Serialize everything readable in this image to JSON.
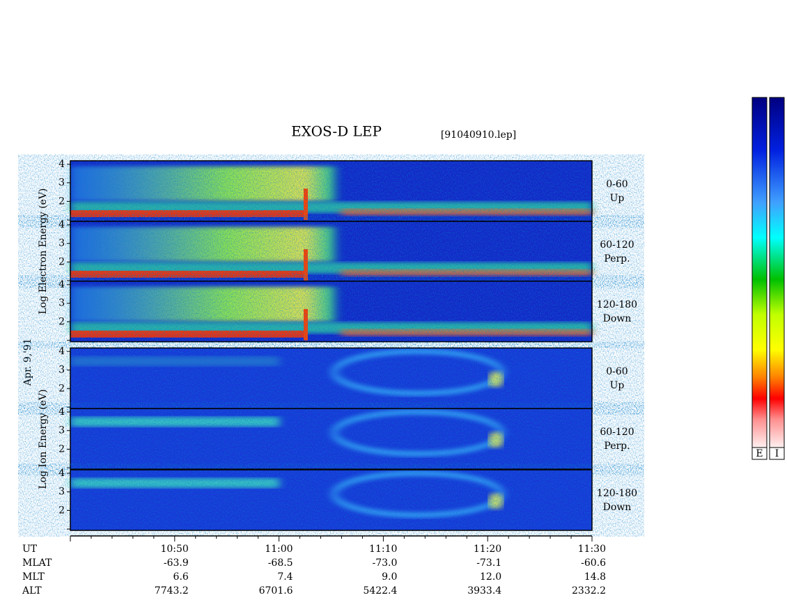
{
  "title": "EXOS-D LEP",
  "file": "[91040910.lep]",
  "date_label": "Apr. 9,'91",
  "groups": [
    {
      "ylabel": "Log  Electron  Energy  (eV)",
      "panels": [
        {
          "range": "0-60",
          "dir": "Up"
        },
        {
          "range": "60-120",
          "dir": "Perp."
        },
        {
          "range": "120-180",
          "dir": "Down"
        }
      ]
    },
    {
      "ylabel": "Log  Ion  Energy  (eV)",
      "panels": [
        {
          "range": "0-60",
          "dir": "Up"
        },
        {
          "range": "60-120",
          "dir": "Perp."
        },
        {
          "range": "120-180",
          "dir": "Down"
        }
      ]
    }
  ],
  "yticks": [
    "2",
    "3",
    "4"
  ],
  "axis_rows": [
    {
      "name": "UT",
      "values": [
        "10:50",
        "11:00",
        "11:10",
        "11:20",
        "11:30"
      ]
    },
    {
      "name": "MLAT",
      "values": [
        "-63.9",
        "-68.5",
        "-73.0",
        "-73.1",
        "-60.6"
      ]
    },
    {
      "name": "MLT",
      "values": [
        "6.6",
        "7.4",
        "9.0",
        "12.0",
        "14.8"
      ]
    },
    {
      "name": "ALT",
      "values": [
        "7743.2",
        "6701.6",
        "5422.4",
        "3933.4",
        "2332.2"
      ]
    }
  ],
  "colorbars": [
    "E",
    "I"
  ]
}
